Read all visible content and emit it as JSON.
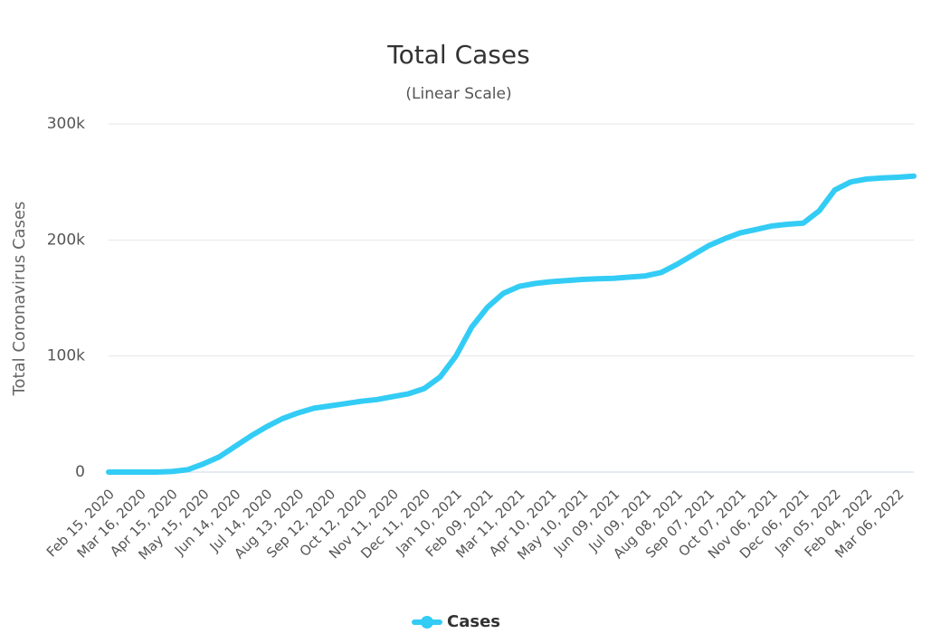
{
  "chart_data": {
    "type": "line",
    "title": "Total Cases",
    "subtitle": "(Linear Scale)",
    "y_label": "Total Coronavirus Cases",
    "categories": [
      "Feb 15, 2020",
      null,
      "Mar 16, 2020",
      null,
      "Apr 15, 2020",
      null,
      "May 15, 2020",
      null,
      "Jun 14, 2020",
      null,
      "Jul 14, 2020",
      null,
      "Aug 13, 2020",
      null,
      "Sep 12, 2020",
      null,
      "Oct 12, 2020",
      null,
      "Nov 11, 2020",
      null,
      "Dec 11, 2020",
      null,
      "Jan 10, 2021",
      null,
      "Feb 09, 2021",
      null,
      "Mar 11, 2021",
      null,
      "Apr 10, 2021",
      null,
      "May 10, 2021",
      null,
      "Jun 09, 2021",
      null,
      "Jul 09, 2021",
      null,
      "Aug 08, 2021",
      null,
      "Sep 07, 2021",
      null,
      "Oct 07, 2021",
      null,
      "Nov 06, 2021",
      null,
      "Dec 06, 2021",
      null,
      "Jan 05, 2022",
      null,
      "Feb 04, 2022",
      null,
      "Mar 06, 2022",
      null
    ],
    "series": [
      {
        "name": "Cases",
        "color": "#33ccf5",
        "values": [
          0,
          0,
          0,
          0,
          500,
          2000,
          7000,
          13000,
          22000,
          31000,
          39000,
          46000,
          51000,
          55000,
          57000,
          59000,
          61000,
          62500,
          65000,
          67500,
          72000,
          82000,
          100000,
          125000,
          142000,
          154000,
          160000,
          162500,
          164000,
          165000,
          166000,
          166500,
          167000,
          168000,
          169000,
          172000,
          179000,
          187000,
          195000,
          201000,
          206000,
          209000,
          212000,
          213500,
          214500,
          225000,
          243000,
          250000,
          252500,
          253500,
          254000,
          255000
        ]
      }
    ],
    "ylim": [
      0,
      300000
    ],
    "yticks": [
      0,
      {
        "value": 100000,
        "label": "100k"
      },
      {
        "value": 200000,
        "label": "200k"
      },
      {
        "value": 300000,
        "label": "300k"
      }
    ],
    "grid": true,
    "legend": "bottom"
  }
}
